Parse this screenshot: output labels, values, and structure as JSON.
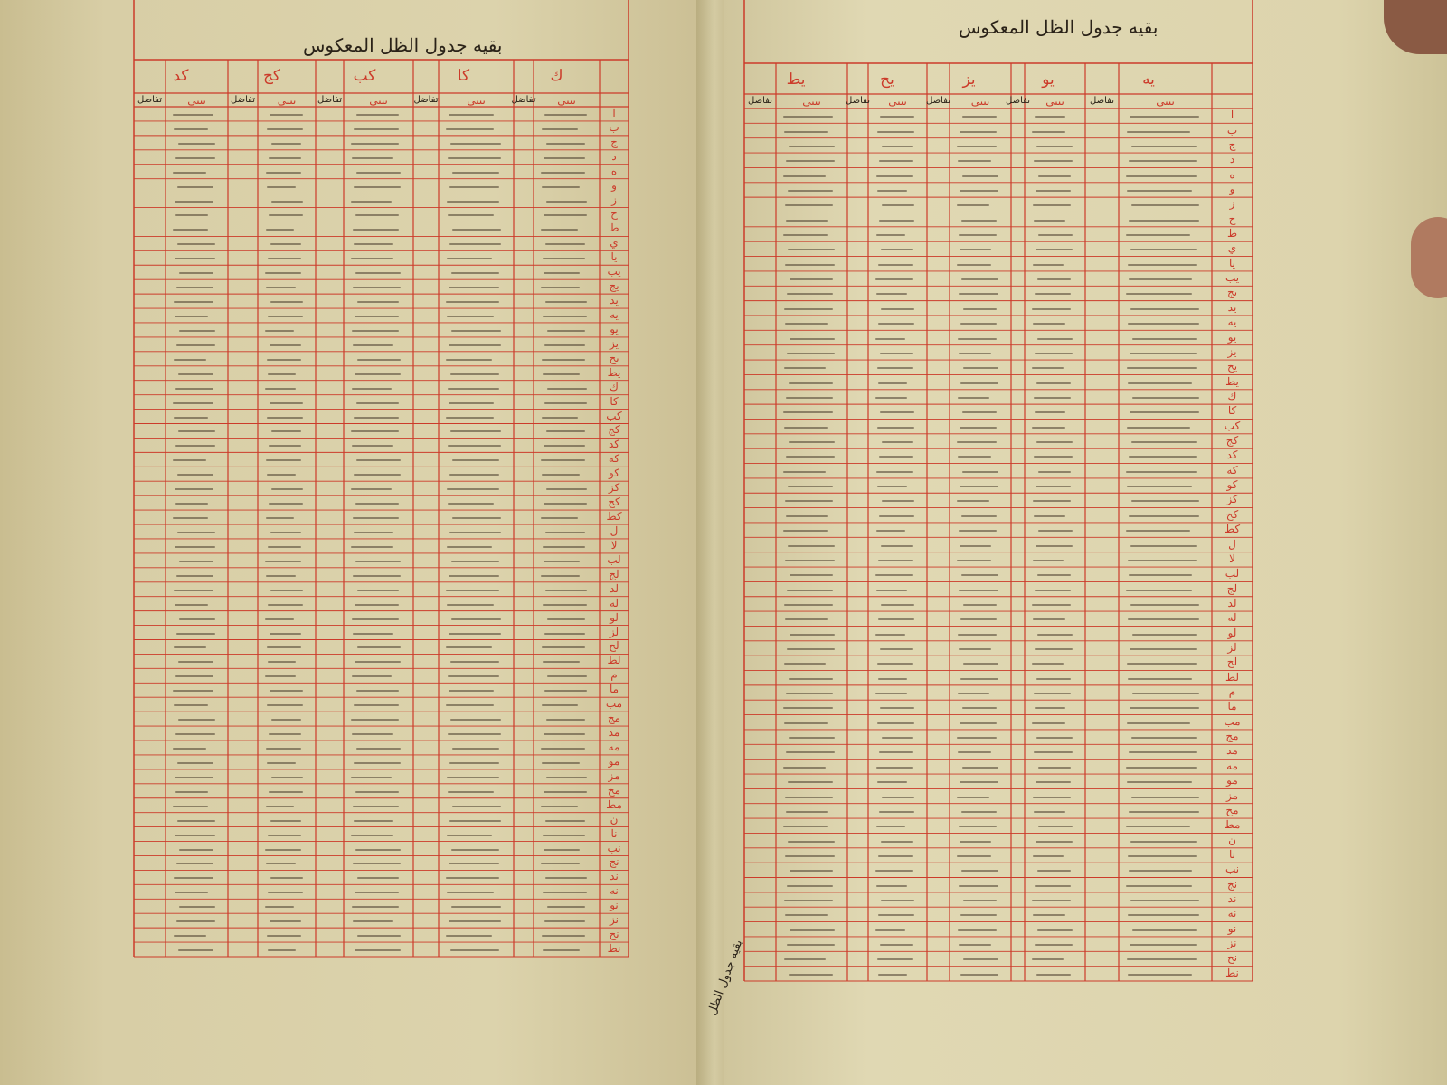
{
  "left_page": {
    "title": "بقيه جدول الظل المعكوس",
    "degrees_right_to_left": [
      "ك",
      "كا",
      "كب",
      "كج",
      "كد"
    ]
  },
  "right_page": {
    "title": "بقيه جدول الظل المعكوس",
    "degrees_right_to_left": [
      "يه",
      "يو",
      "يز",
      "يح",
      "يط"
    ]
  },
  "column_subheader_difference": "تفاضل",
  "column_subheader_units": "ىىىى",
  "row_labels": [
    "ا",
    "ب",
    "ج",
    "د",
    "ه",
    "و",
    "ز",
    "ح",
    "ط",
    "ي",
    "يا",
    "يب",
    "يج",
    "يد",
    "يه",
    "يو",
    "يز",
    "يح",
    "يط",
    "ك",
    "كا",
    "كب",
    "كج",
    "كد",
    "كه",
    "كو",
    "كز",
    "كح",
    "كط",
    "ل",
    "لا",
    "لب",
    "لج",
    "لد",
    "له",
    "لو",
    "لز",
    "لح",
    "لط",
    "م",
    "ما",
    "مب",
    "مج",
    "مد",
    "مه",
    "مو",
    "مز",
    "مح",
    "مط",
    "ن",
    "نا",
    "نب",
    "نج",
    "ند",
    "نه",
    "نو",
    "نز",
    "نح",
    "نط"
  ],
  "catchword": "بقيه جدول الظل",
  "colors": {
    "rule_red": "#cc3b2a",
    "ink": "#2a2218",
    "paper": "#dcd3ac"
  }
}
